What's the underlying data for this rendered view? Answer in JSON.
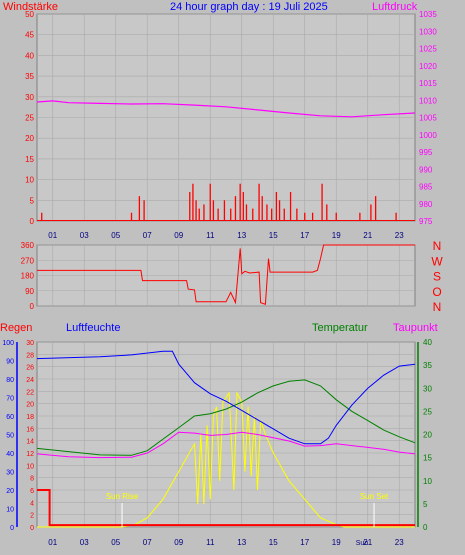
{
  "colors": {
    "background": "#c0c0c0",
    "plot_bg": "#c8c8c8",
    "grid": "#aaaaaa",
    "wind": "#ff0000",
    "pressure": "#ff00ff",
    "direction": "#ff0000",
    "rain": "#ff0000",
    "humidity": "#0000ff",
    "temperature": "#008000",
    "dewpoint": "#ff00ff",
    "solar": "#ffff00",
    "sun_marker": "#ffff00",
    "title": "#0000ff"
  },
  "header": {
    "title": "24 hour graph day : 19 Juli 2025",
    "left_label": "Windstärke",
    "right_label": "Luftdruck"
  },
  "x_ticks": [
    "01",
    "03",
    "05",
    "07",
    "09",
    "11",
    "13",
    "15",
    "17",
    "19",
    "21",
    "23"
  ],
  "chart_data": [
    {
      "type": "bar",
      "name": "wind",
      "xlim": [
        0,
        24
      ],
      "ylim_left": [
        0,
        50
      ],
      "left_ticks": [
        "50",
        "45",
        "40",
        "35",
        "30",
        "25",
        "20",
        "15",
        "10",
        "5",
        "0"
      ],
      "ylim_right": [
        975,
        1035
      ],
      "right_ticks": [
        "1035",
        "1030",
        "1025",
        "1020",
        "1015",
        "1010",
        "1005",
        "1000",
        "995",
        "990",
        "985",
        "980",
        "975"
      ],
      "wind_bars": [
        [
          0.3,
          2
        ],
        [
          6.0,
          2
        ],
        [
          6.5,
          6
        ],
        [
          6.8,
          5
        ],
        [
          9.7,
          7
        ],
        [
          9.9,
          9
        ],
        [
          10.1,
          5
        ],
        [
          10.3,
          3
        ],
        [
          10.6,
          4
        ],
        [
          11.0,
          9
        ],
        [
          11.2,
          5
        ],
        [
          11.5,
          3
        ],
        [
          11.9,
          5
        ],
        [
          12.3,
          3
        ],
        [
          12.6,
          6
        ],
        [
          12.9,
          9
        ],
        [
          13.1,
          7
        ],
        [
          13.3,
          4
        ],
        [
          13.7,
          3
        ],
        [
          14.1,
          9
        ],
        [
          14.3,
          6
        ],
        [
          14.6,
          4
        ],
        [
          14.9,
          3
        ],
        [
          15.2,
          7
        ],
        [
          15.4,
          5
        ],
        [
          15.7,
          3
        ],
        [
          16.1,
          7
        ],
        [
          16.5,
          3
        ],
        [
          17.0,
          2
        ],
        [
          17.5,
          2
        ],
        [
          18.1,
          9
        ],
        [
          18.4,
          4
        ],
        [
          19.0,
          2
        ],
        [
          20.5,
          2
        ],
        [
          21.2,
          4
        ],
        [
          21.5,
          6
        ],
        [
          22.8,
          2
        ]
      ],
      "pressure": [
        [
          0,
          1009.5
        ],
        [
          1,
          1009.8
        ],
        [
          2,
          1009.3
        ],
        [
          4,
          1009.1
        ],
        [
          6,
          1008.9
        ],
        [
          8,
          1009.0
        ],
        [
          10,
          1008.6
        ],
        [
          12,
          1008.1
        ],
        [
          14,
          1007.2
        ],
        [
          16,
          1006.3
        ],
        [
          18,
          1005.5
        ],
        [
          20,
          1005.2
        ],
        [
          22,
          1005.8
        ],
        [
          24,
          1006.3
        ]
      ]
    },
    {
      "type": "line",
      "name": "wind direction",
      "xlim": [
        0,
        24
      ],
      "ylim": [
        0,
        360
      ],
      "left_ticks": [
        "360",
        "270",
        "180",
        "90",
        "0"
      ],
      "compass": [
        "N",
        "W",
        "S",
        "O",
        "N"
      ],
      "direction": [
        [
          0,
          210
        ],
        [
          6.6,
          210
        ],
        [
          6.7,
          150
        ],
        [
          9.5,
          150
        ],
        [
          9.6,
          100
        ],
        [
          10.0,
          95
        ],
        [
          10.1,
          25
        ],
        [
          12.0,
          25
        ],
        [
          12.3,
          80
        ],
        [
          12.6,
          20
        ],
        [
          12.9,
          340
        ],
        [
          13.0,
          190
        ],
        [
          13.2,
          205
        ],
        [
          13.5,
          195
        ],
        [
          14.1,
          200
        ],
        [
          14.2,
          20
        ],
        [
          14.5,
          10
        ],
        [
          14.7,
          280
        ],
        [
          14.8,
          200
        ],
        [
          17.5,
          200
        ],
        [
          17.8,
          210
        ],
        [
          18.0,
          280
        ],
        [
          18.2,
          360
        ],
        [
          24,
          360
        ]
      ]
    },
    {
      "type": "line",
      "name": "rain humidity temperature dewpoint",
      "xlim": [
        0,
        24
      ],
      "labels": {
        "rain": "Regen",
        "humidity": "Luftfeuchte",
        "temperature": "Temperatur",
        "dewpoint": "Taupunkt",
        "sunrise": "Sun Rise",
        "sunset": "Sun Set",
        "extra_tick": "Sun"
      },
      "rain_ticks": [
        "30",
        "28",
        "26",
        "24",
        "22",
        "20",
        "18",
        "16",
        "14",
        "12",
        "10",
        "8",
        "6",
        "4",
        "2",
        "0"
      ],
      "humidity_ticks": [
        "100",
        "90",
        "80",
        "70",
        "60",
        "50",
        "40",
        "30",
        "20",
        "10",
        "0"
      ],
      "temp_ticks": [
        "40",
        "35",
        "30",
        "25",
        "20",
        "15",
        "10",
        "5",
        "0"
      ],
      "rain_ylim": [
        0,
        30
      ],
      "humidity_ylim": [
        0,
        100
      ],
      "temp_ylim": [
        0,
        40
      ],
      "sunrise_hour": 5.4,
      "sunset_hour": 21.4,
      "rain": [
        [
          0,
          6
        ],
        [
          0.8,
          6
        ],
        [
          0.8,
          0.3
        ],
        [
          24,
          0.3
        ]
      ],
      "humidity": [
        [
          0,
          91
        ],
        [
          4,
          92
        ],
        [
          6,
          93
        ],
        [
          8,
          95
        ],
        [
          8.6,
          95
        ],
        [
          9.0,
          88
        ],
        [
          10.0,
          78
        ],
        [
          11.0,
          72
        ],
        [
          12.0,
          68
        ],
        [
          13.0,
          63
        ],
        [
          14.0,
          58
        ],
        [
          15.0,
          53
        ],
        [
          16.0,
          48
        ],
        [
          17.0,
          45
        ],
        [
          18.0,
          45
        ],
        [
          18.5,
          48
        ],
        [
          19.0,
          55
        ],
        [
          20.0,
          66
        ],
        [
          21.0,
          75
        ],
        [
          22.0,
          82
        ],
        [
          23.0,
          87
        ],
        [
          24.0,
          88
        ]
      ],
      "temperature": [
        [
          0,
          17
        ],
        [
          2,
          16.3
        ],
        [
          4,
          15.6
        ],
        [
          6,
          15.5
        ],
        [
          7,
          16.5
        ],
        [
          8,
          19
        ],
        [
          9,
          21.5
        ],
        [
          10,
          24
        ],
        [
          11,
          24.5
        ],
        [
          12,
          25.5
        ],
        [
          13,
          27
        ],
        [
          14,
          29
        ],
        [
          15,
          30.5
        ],
        [
          16,
          31.5
        ],
        [
          17,
          31.8
        ],
        [
          18,
          30.5
        ],
        [
          19,
          27.5
        ],
        [
          20,
          25
        ],
        [
          21,
          23
        ],
        [
          22,
          21
        ],
        [
          23,
          19.5
        ],
        [
          24,
          18.2
        ]
      ],
      "dewpoint": [
        [
          0,
          15.8
        ],
        [
          2,
          15.2
        ],
        [
          4,
          15
        ],
        [
          6,
          15.1
        ],
        [
          7,
          16
        ],
        [
          8,
          18
        ],
        [
          9,
          20.5
        ],
        [
          10,
          20.3
        ],
        [
          11,
          19.8
        ],
        [
          12,
          20
        ],
        [
          13,
          20.5
        ],
        [
          14,
          20
        ],
        [
          15,
          19.3
        ],
        [
          16,
          18.6
        ],
        [
          17,
          17.5
        ],
        [
          18,
          17.6
        ],
        [
          19,
          18
        ],
        [
          20,
          17.6
        ],
        [
          21,
          17.2
        ],
        [
          22,
          16.8
        ],
        [
          23,
          16.2
        ],
        [
          24,
          15.8
        ]
      ],
      "solar_scale": "temperature",
      "solar": [
        [
          0,
          0
        ],
        [
          5.4,
          0
        ],
        [
          6.2,
          0.5
        ],
        [
          7.0,
          2
        ],
        [
          8.0,
          6
        ],
        [
          9.0,
          12
        ],
        [
          10.0,
          18
        ],
        [
          10.2,
          5
        ],
        [
          10.4,
          20
        ],
        [
          10.6,
          5
        ],
        [
          10.8,
          22
        ],
        [
          11.0,
          6
        ],
        [
          11.2,
          24
        ],
        [
          11.4,
          26
        ],
        [
          11.6,
          10
        ],
        [
          11.8,
          27
        ],
        [
          12.2,
          29
        ],
        [
          12.5,
          8
        ],
        [
          12.7,
          29
        ],
        [
          13.0,
          27
        ],
        [
          13.2,
          12
        ],
        [
          13.4,
          26
        ],
        [
          13.6,
          11
        ],
        [
          13.8,
          24
        ],
        [
          14.0,
          8
        ],
        [
          14.2,
          23
        ],
        [
          14.5,
          20
        ],
        [
          15.0,
          16
        ],
        [
          16.0,
          10
        ],
        [
          17.0,
          6
        ],
        [
          18.0,
          2
        ],
        [
          19.0,
          0.5
        ],
        [
          19.5,
          0
        ],
        [
          24,
          0
        ]
      ]
    }
  ]
}
